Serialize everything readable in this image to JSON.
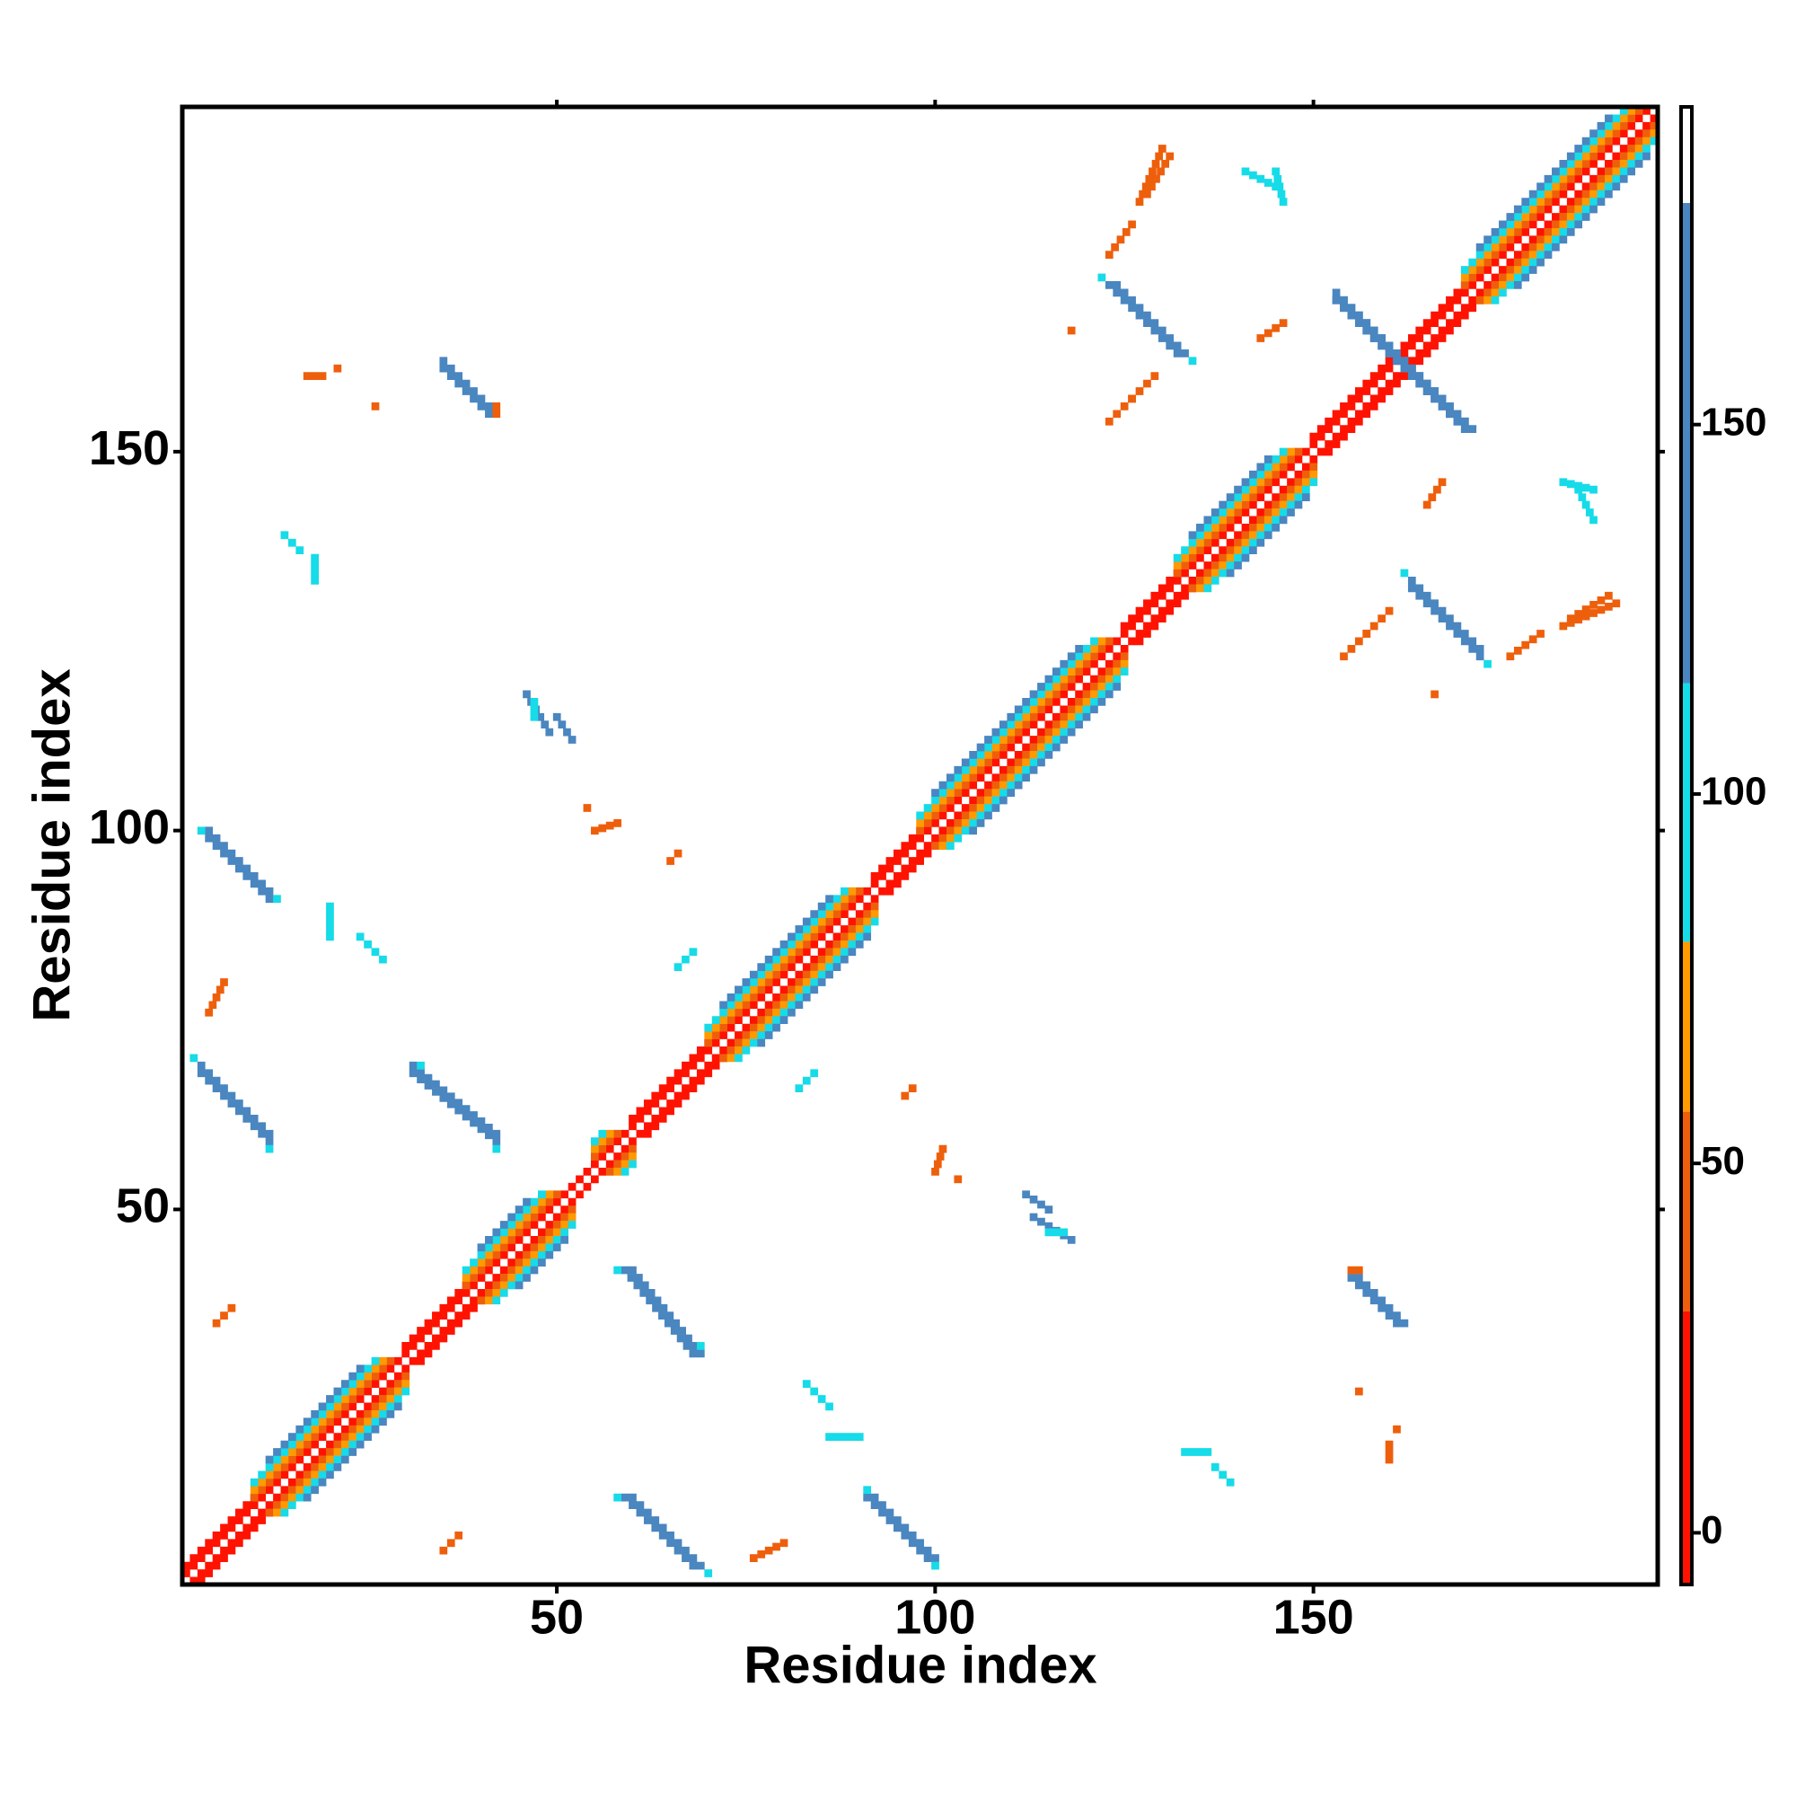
{
  "chart_data": {
    "type": "heatmap",
    "x_label": "Residue index",
    "y_label": "Residue index",
    "xlim": [
      0.5,
      195.5
    ],
    "ylim": [
      0.5,
      195.5
    ],
    "xticks": [
      50,
      100,
      150
    ],
    "yticks": [
      50,
      100,
      150
    ],
    "symmetric": true,
    "segments": [
      [
        1,
        2,
        194,
        195,
        5
      ],
      [
        1,
        3,
        10,
        12,
        15
      ],
      [
        30,
        32,
        38,
        40,
        15
      ],
      [
        60,
        62,
        70,
        72,
        15
      ],
      [
        92,
        94,
        98,
        100,
        15
      ],
      [
        125,
        127,
        132,
        134,
        15
      ],
      [
        150,
        152,
        170,
        172,
        15
      ],
      [
        10,
        12,
        28,
        30,
        40
      ],
      [
        10,
        13,
        27,
        30,
        65
      ],
      [
        10,
        14,
        26,
        30,
        95
      ],
      [
        12,
        17,
        24,
        29,
        130
      ],
      [
        38,
        40,
        50,
        52,
        40
      ],
      [
        38,
        41,
        49,
        52,
        65
      ],
      [
        38,
        42,
        48,
        52,
        95
      ],
      [
        40,
        45,
        46,
        51,
        130
      ],
      [
        55,
        57,
        58,
        60,
        40
      ],
      [
        55,
        58,
        57,
        60,
        65
      ],
      [
        55,
        59,
        56,
        60,
        95
      ],
      [
        70,
        72,
        90,
        92,
        40
      ],
      [
        70,
        73,
        89,
        92,
        65
      ],
      [
        70,
        74,
        88,
        92,
        95
      ],
      [
        72,
        77,
        86,
        91,
        130
      ],
      [
        98,
        100,
        123,
        125,
        40
      ],
      [
        98,
        101,
        122,
        125,
        65
      ],
      [
        98,
        102,
        121,
        125,
        95
      ],
      [
        100,
        105,
        119,
        124,
        130
      ],
      [
        132,
        134,
        148,
        150,
        40
      ],
      [
        132,
        135,
        147,
        150,
        65
      ],
      [
        132,
        136,
        146,
        150,
        95
      ],
      [
        134,
        139,
        144,
        149,
        130
      ],
      [
        170,
        172,
        193,
        195,
        40
      ],
      [
        170,
        173,
        192,
        195,
        65
      ],
      [
        170,
        174,
        191,
        195,
        95
      ],
      [
        172,
        177,
        189,
        194,
        130
      ],
      [
        59,
        42,
        68,
        31,
        150
      ],
      [
        60,
        42,
        69,
        31,
        150
      ],
      [
        58,
        42,
        58,
        42,
        95
      ],
      [
        69,
        32,
        69,
        32,
        95
      ],
      [
        59,
        12,
        68,
        3,
        150
      ],
      [
        60,
        12,
        69,
        3,
        150
      ],
      [
        58,
        12,
        58,
        12,
        95
      ],
      [
        70,
        2,
        70,
        2,
        95
      ],
      [
        91,
        12,
        99,
        4,
        150
      ],
      [
        92,
        12,
        100,
        4,
        150
      ],
      [
        91,
        13,
        91,
        13,
        95
      ],
      [
        100,
        3,
        100,
        3,
        95
      ],
      [
        155,
        41,
        161,
        35,
        150
      ],
      [
        156,
        41,
        162,
        35,
        150
      ],
      [
        155,
        42,
        156,
        42,
        50
      ],
      [
        123,
        172,
        132,
        163,
        150
      ],
      [
        124,
        172,
        133,
        163,
        150
      ],
      [
        122,
        173,
        122,
        173,
        95
      ],
      [
        134,
        162,
        134,
        162,
        95
      ],
      [
        153,
        170,
        170,
        153,
        150
      ],
      [
        154,
        170,
        171,
        153,
        150
      ],
      [
        96,
        65,
        97,
        66,
        50
      ],
      [
        103,
        54,
        103,
        54,
        45
      ],
      [
        113,
        49,
        118,
        46,
        120
      ],
      [
        115,
        47,
        117,
        47,
        95
      ],
      [
        161,
        21,
        161,
        21,
        45
      ],
      [
        133,
        18,
        136,
        18,
        95
      ],
      [
        83,
        27,
        86,
        24,
        95
      ],
      [
        86,
        20,
        90,
        20,
        95
      ],
      [
        66,
        82,
        68,
        84,
        95
      ],
      [
        55,
        100,
        58,
        101,
        45
      ],
      [
        50,
        115,
        52,
        112,
        120
      ],
      [
        5,
        35,
        7,
        37,
        45
      ],
      [
        4,
        76,
        6,
        80,
        45
      ],
      [
        17,
        160,
        19,
        160,
        45
      ],
      [
        14,
        139,
        16,
        137,
        95
      ],
      [
        126,
        157,
        129,
        160,
        50
      ],
      [
        165,
        143,
        167,
        146,
        50
      ],
      [
        183,
        146,
        187,
        145,
        95
      ],
      [
        183,
        127,
        190,
        130,
        50
      ],
      [
        128,
        184,
        131,
        189,
        50
      ],
      [
        141,
        187,
        145,
        185,
        95
      ],
      [
        156,
        26,
        156,
        26,
        50
      ],
      [
        176,
        123,
        180,
        126,
        50
      ],
      [
        154,
        123,
        157,
        126,
        50
      ],
      [
        166,
        118,
        166,
        118,
        50
      ]
    ],
    "colorbar": {
      "lim": [
        -7,
        193
      ],
      "ticks": [
        0,
        50,
        100,
        150
      ],
      "bands": [
        {
          "from": -7,
          "to": 30,
          "color": "#ff1200"
        },
        {
          "from": 30,
          "to": 57,
          "color": "#ee5f0c"
        },
        {
          "from": 57,
          "to": 80,
          "color": "#ff9a00"
        },
        {
          "from": 80,
          "to": 115,
          "color": "#16dbe8"
        },
        {
          "from": 115,
          "to": 180,
          "color": "#4a86c0"
        },
        {
          "from": 180,
          "to": 193,
          "color": "#ffffff"
        }
      ]
    }
  }
}
